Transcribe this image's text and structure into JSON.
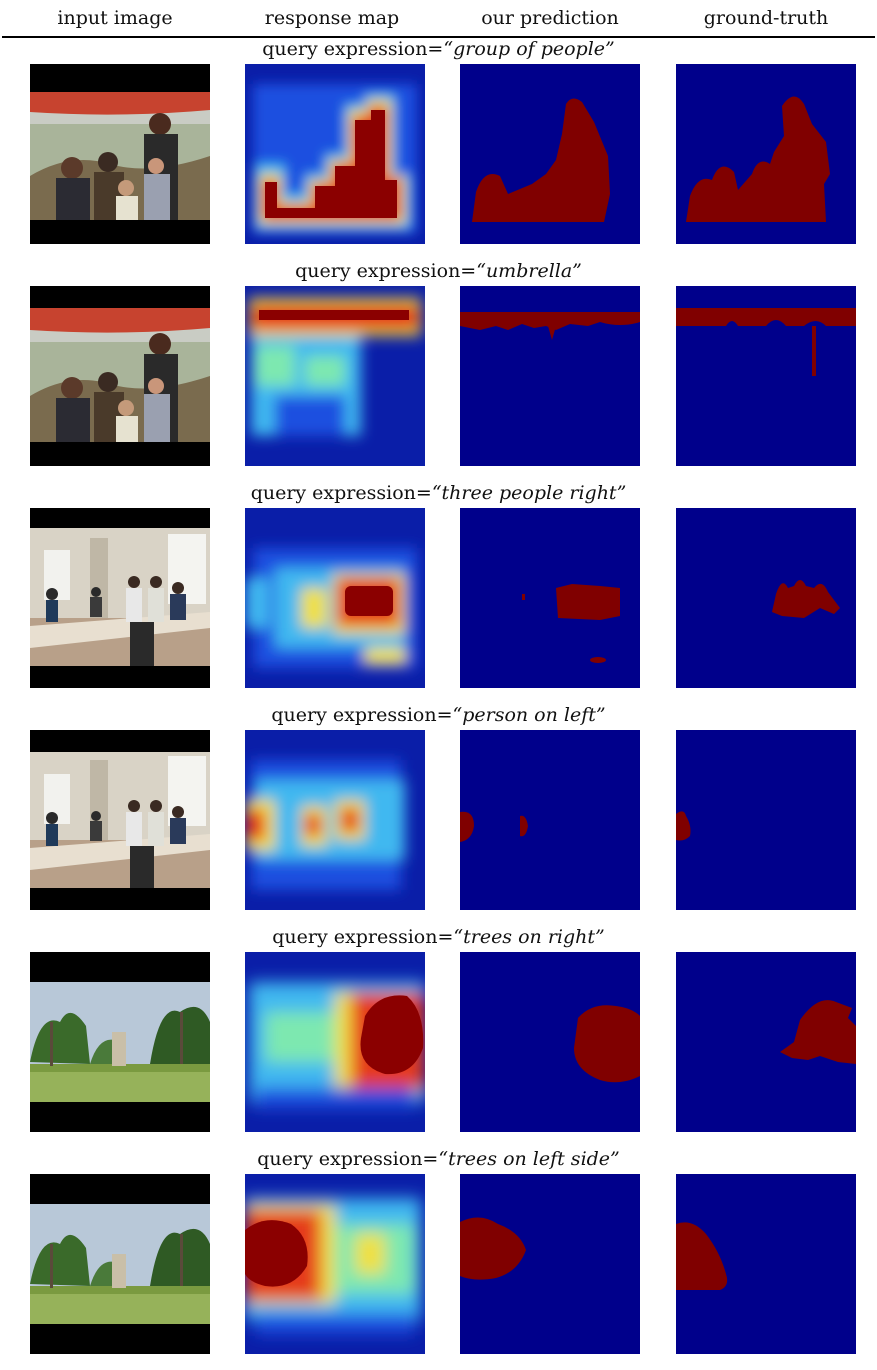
{
  "header": {
    "columns": [
      "input image",
      "response map",
      "our prediction",
      "ground-truth"
    ]
  },
  "colors": {
    "mask_background": "#00008b",
    "mask_foreground": "#800000",
    "heat_low": "#0a1ea8",
    "heat_high": "#8b0000"
  },
  "rows": [
    {
      "query_prefix": "query expression=",
      "query": "“group of people”",
      "scene": "family-umbrella",
      "mask_icon": "group-mask-icon"
    },
    {
      "query_prefix": "query expression=",
      "query": "“umbrella”",
      "scene": "family-umbrella",
      "mask_icon": "umbrella-mask-icon"
    },
    {
      "query_prefix": "query expression=",
      "query": "“three people right”",
      "scene": "classroom",
      "mask_icon": "three-people-mask-icon"
    },
    {
      "query_prefix": "query expression=",
      "query": "“person on left”",
      "scene": "classroom",
      "mask_icon": "person-left-mask-icon"
    },
    {
      "query_prefix": "query expression=",
      "query": "“trees on right”",
      "scene": "palm-park",
      "mask_icon": "trees-right-mask-icon"
    },
    {
      "query_prefix": "query expression=",
      "query": "“trees on left side”",
      "scene": "palm-park",
      "mask_icon": "trees-left-mask-icon"
    }
  ]
}
